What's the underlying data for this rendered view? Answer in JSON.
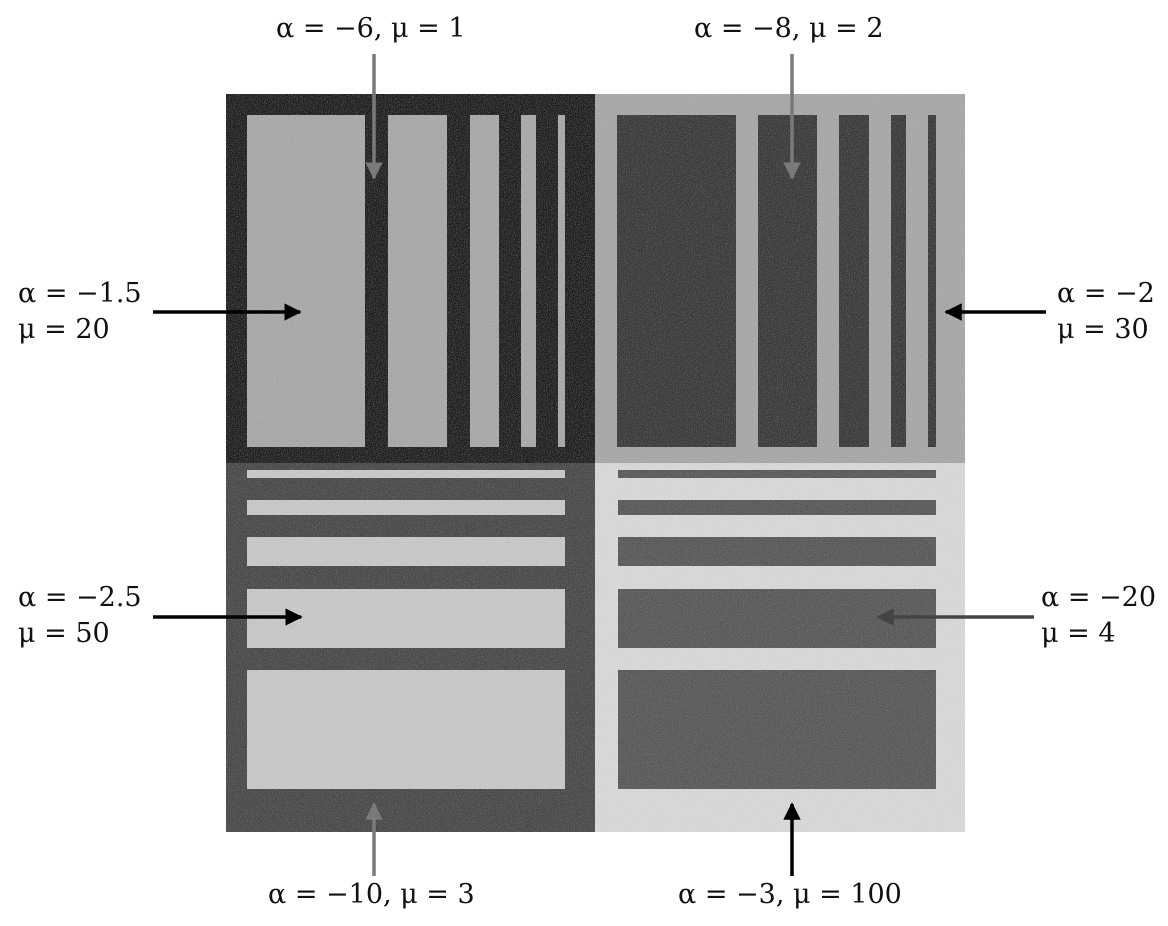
{
  "figure": {
    "labels": {
      "top_left": {
        "text": "α = −6,  μ = 1"
      },
      "top_right": {
        "text": "α = −8,  μ = 2"
      },
      "left_upper": {
        "line1": "α = −1.5",
        "line2": "μ = 20"
      },
      "right_upper": {
        "line1": "α = −2",
        "line2": "μ = 30"
      },
      "left_lower": {
        "line1": "α = −2.5",
        "line2": "μ = 50"
      },
      "right_lower": {
        "line1": "α = −20",
        "line2": "μ = 4"
      },
      "bottom_left": {
        "text": "α = −10,  μ = 3"
      },
      "bottom_right": {
        "text": "α = −3,  μ = 100"
      }
    },
    "colors": {
      "arrow_black": "#000000",
      "arrow_gray": "#7a7a7a",
      "arrow_darkgray": "#444444",
      "q1_background": "#1e1e1e",
      "q1_bars": "#a9a9a9",
      "q2_background": "#a8a8a8",
      "q2_bars": "#3a3a3a",
      "q3_background": "#4a4a4a",
      "q3_bars": "#c8c8c8",
      "q4_background": "#d8d8d8",
      "q4_bars": "#5a5a5a"
    }
  }
}
